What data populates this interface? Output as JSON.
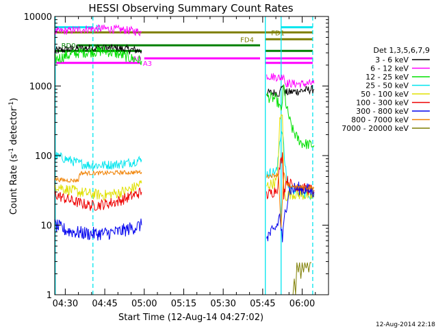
{
  "chart_data": {
    "type": "line",
    "title": "HESSI Observing Summary Count Rates",
    "xlabel": "Start Time (12-Aug-14 04:27:02)",
    "ylabel_main": "Count Rate (s",
    "ylabel_sup1": "-1",
    "ylabel_mid": " detector",
    "ylabel_sup2": "-1",
    "ylabel_end": ")",
    "footer": "12-Aug-2014 22:18",
    "x_unit": "minutes of day (UT)",
    "xlim": [
      266,
      370
    ],
    "ylim": [
      1,
      10000
    ],
    "yscale": "log",
    "xticks": [
      {
        "v": 270,
        "label": "04:30"
      },
      {
        "v": 285,
        "label": "04:45"
      },
      {
        "v": 300,
        "label": "05:00"
      },
      {
        "v": 315,
        "label": "05:15"
      },
      {
        "v": 330,
        "label": "05:30"
      },
      {
        "v": 345,
        "label": "05:45"
      },
      {
        "v": 360,
        "label": "06:00"
      }
    ],
    "yticks": [
      {
        "v": 1,
        "label": "1"
      },
      {
        "v": 10,
        "label": "10"
      },
      {
        "v": 100,
        "label": "100"
      },
      {
        "v": 1000,
        "label": "1000"
      },
      {
        "v": 10000,
        "label": "10000"
      }
    ],
    "legend": {
      "header": "Det 1,3,5,6,7,9",
      "placement": "right"
    },
    "vlines": [
      {
        "x": 266.2,
        "color": "#00e5ee",
        "style": "solid"
      },
      {
        "x": 280.5,
        "color": "#00e5ee",
        "style": "dashed"
      },
      {
        "x": 346.0,
        "color": "#00e5ee",
        "style": "solid"
      },
      {
        "x": 352.0,
        "color": "#00e5ee",
        "style": "solid"
      },
      {
        "x": 364.0,
        "color": "#00e5ee",
        "style": "dashed"
      }
    ],
    "flags": [
      {
        "label": "N",
        "color": "#00e5ee",
        "y": 7000,
        "x0": 266,
        "x1": 280.5,
        "label_x": 281.5
      },
      {
        "label": "",
        "color": "#00e5ee",
        "y": 7000,
        "x0": 352,
        "x1": 364,
        "label_x": null
      },
      {
        "label": "FD1",
        "color": "#7d7d00",
        "y": 5900,
        "x0": 266,
        "x1": 347,
        "label_x": 348.2
      },
      {
        "label": "",
        "color": "#7d7d00",
        "y": 5900,
        "x0": 347,
        "x1": 364,
        "label_x": null
      },
      {
        "label": "FD4",
        "color": "#7d7d00",
        "y": 4700,
        "x0": 346,
        "x1": 364,
        "label_x": 336.5
      },
      {
        "label": "RD0",
        "color": "#007f00",
        "y": 3850,
        "x0": 274.5,
        "x1": 344,
        "label_x": 268.5
      },
      {
        "label": "",
        "color": "#007f00",
        "y": 3200,
        "x0": 266,
        "x1": 299,
        "label_x": null
      },
      {
        "label": "",
        "color": "#007f00",
        "y": 3200,
        "x0": 346,
        "x1": 364,
        "label_x": null
      },
      {
        "label": "A0",
        "color": "#ff00ff",
        "y": 2500,
        "x0": 300,
        "x1": 344,
        "label_x": 295.5
      },
      {
        "label": "",
        "color": "#ff00ff",
        "y": 2500,
        "x0": 346,
        "x1": 364,
        "label_x": null
      },
      {
        "label": "A3",
        "color": "#ff00ff",
        "y": 2150,
        "x0": 266,
        "x1": 298.5,
        "label_x": 299.5
      },
      {
        "label": "",
        "color": "#ff00ff",
        "y": 2150,
        "x0": 346,
        "x1": 364,
        "label_x": null
      }
    ],
    "series": [
      {
        "name": "3 - 6 keV",
        "color": "#000000",
        "noise": 0.06,
        "segments": [
          {
            "x": [
              266,
              272,
              278,
              284,
              290,
              296,
              299
            ],
            "y": [
              3200,
              3400,
              3500,
              3500,
              3450,
              3300,
              3200
            ]
          },
          {
            "x": [
              346.5,
              350,
              351.5,
              352.5,
              353.5,
              356,
              360,
              364.5
            ],
            "y": [
              800,
              800,
              790,
              1080,
              800,
              820,
              860,
              900
            ]
          }
        ]
      },
      {
        "name": "6 - 12 keV",
        "color": "#ff00ff",
        "noise": 0.06,
        "segments": [
          {
            "x": [
              266,
              272,
              278,
              284,
              290,
              296,
              299
            ],
            "y": [
              6000,
              6300,
              6600,
              6700,
              6500,
              6200,
              5900
            ]
          },
          {
            "x": [
              346.5,
              350,
              352,
              353,
              353.5,
              356,
              360,
              364.5
            ],
            "y": [
              1400,
              1350,
              1300,
              1500,
              1100,
              1080,
              1070,
              1090
            ]
          }
        ]
      },
      {
        "name": "12 - 25 keV",
        "color": "#00e000",
        "noise": 0.08,
        "segments": [
          {
            "x": [
              266,
              270,
              275,
              280,
              285,
              290,
              295,
              299
            ],
            "y": [
              2400,
              2700,
              3000,
              3100,
              3200,
              2900,
              2500,
              2300
            ]
          },
          {
            "x": [
              346.5,
              350,
              351,
              352,
              353,
              354,
              356,
              358,
              360,
              364.5
            ],
            "y": [
              700,
              650,
              560,
              420,
              1000,
              500,
              250,
              180,
              150,
              140
            ]
          }
        ]
      },
      {
        "name": "25 - 50 keV",
        "color": "#00e5ee",
        "noise": 0.07,
        "segments": [
          {
            "x": [
              266,
              270,
              275,
              280,
              285,
              290,
              295,
              299
            ],
            "y": [
              100,
              90,
              78,
              72,
              73,
              75,
              80,
              88
            ]
          },
          {
            "x": [
              346.5,
              349,
              350.5,
              351.5,
              352.5,
              353.5,
              354.5,
              356,
              358,
              360,
              364.5
            ],
            "y": [
              55,
              58,
              62,
              170,
              240,
              70,
              38,
              34,
              30,
              28,
              27
            ]
          }
        ]
      },
      {
        "name": "50 - 100 keV",
        "color": "#e0e000",
        "noise": 0.08,
        "segments": [
          {
            "x": [
              266,
              270,
              275,
              280,
              285,
              290,
              295,
              299
            ],
            "y": [
              38,
              33,
              30,
              28,
              27,
              29,
              33,
              40
            ]
          },
          {
            "x": [
              346.5,
              349,
              350.5,
              351.5,
              352.5,
              353,
              353.5,
              355,
              358,
              361,
              364.5
            ],
            "y": [
              37,
              40,
              44,
              300,
              430,
              35,
              25,
              28,
              28,
              27,
              25
            ]
          }
        ]
      },
      {
        "name": "100 - 300 keV",
        "color": "#ee0000",
        "noise": 0.08,
        "segments": [
          {
            "x": [
              266,
              270,
              275,
              280,
              285,
              290,
              295,
              299
            ],
            "y": [
              28,
              24,
              21,
              19,
              20,
              22,
              26,
              30
            ]
          },
          {
            "x": [
              346.5,
              349,
              350.5,
              351.5,
              352.5,
              353,
              354,
              356,
              360,
              364.5
            ],
            "y": [
              27,
              30,
              34,
              70,
              100,
              28,
              45,
              38,
              34,
              32
            ]
          }
        ]
      },
      {
        "name": "300 - 800 keV",
        "color": "#0000ee",
        "noise": 0.1,
        "segments": [
          {
            "x": [
              266,
              270,
              275,
              280,
              285,
              290,
              295,
              299
            ],
            "y": [
              10,
              8.5,
              7.8,
              7.5,
              7.6,
              8,
              9,
              10
            ]
          },
          {
            "x": [
              346.5,
              349,
              350.5,
              351.5,
              352.5,
              353.5,
              355,
              358,
              361,
              364.5
            ],
            "y": [
              7,
              8,
              10,
              14,
              6,
              15,
              32,
              34,
              33,
              30
            ]
          }
        ]
      },
      {
        "name": "800 - 7000 keV",
        "color": "#f08000",
        "noise": 0.03,
        "segments": [
          {
            "x": [
              266,
              270,
              275,
              275.5,
              280,
              285,
              290,
              295,
              299
            ],
            "y": [
              46,
              44,
              44,
              56,
              56,
              56,
              57,
              57,
              58
            ]
          },
          {
            "x": [
              346.5,
              349,
              351,
              352,
              353,
              354,
              356,
              360,
              364.5
            ],
            "y": [
              50,
              52,
              54,
              9,
              60,
              38,
              36,
              35,
              34
            ]
          }
        ]
      },
      {
        "name": "7000 - 20000 keV",
        "color": "#7d7d00",
        "noise": 0,
        "segments": [
          {
            "x": [
              356.5,
              357,
              357.5,
              358,
              358.5,
              359,
              359.5,
              360,
              360.5,
              361,
              361.5,
              362,
              362.5,
              363,
              363.5
            ],
            "y": [
              1,
              1.7,
              1,
              2.9,
              2.1,
              2.9,
              1.7,
              2.9,
              2.1,
              2.9,
              2.4,
              2.9,
              2.1,
              2.9,
              2.9
            ]
          }
        ]
      }
    ]
  }
}
